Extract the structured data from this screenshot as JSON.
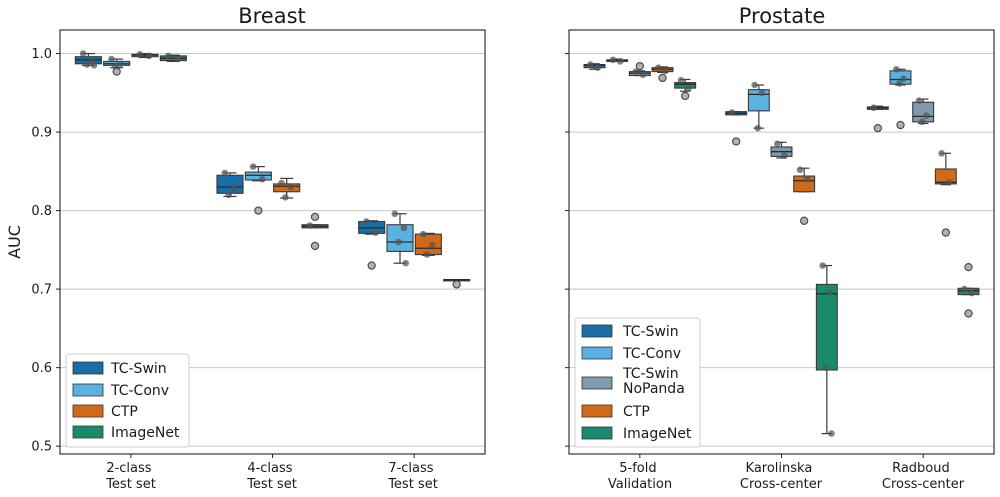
{
  "colors": {
    "TC-Swin": "#1a6ea8",
    "TC-Conv": "#5cb1e3",
    "TC-Swin NoPanda": "#7e9bb0",
    "CTP": "#d06a18",
    "ImageNet": "#1a8a6c"
  },
  "chart_data": [
    {
      "type": "box",
      "title": "Breast",
      "ylabel": "AUC",
      "ylim": [
        0.49,
        1.03
      ],
      "yticks": [
        "0.5",
        "0.6",
        "0.7",
        "0.8",
        "0.9",
        "1.0"
      ],
      "grid": true,
      "legend_position": "lower-left",
      "legend": [
        "TC-Swin",
        "TC-Conv",
        "CTP",
        "ImageNet"
      ],
      "categories": [
        "2-class\nTest set",
        "4-class\nTest set",
        "7-class\nTest set"
      ],
      "series": [
        {
          "name": "TC-Swin",
          "color_key": "TC-Swin",
          "boxes": [
            {
              "whislo": 0.985,
              "q1": 0.987,
              "med": 0.992,
              "q3": 0.996,
              "whishi": 1.0,
              "points": [
                1.0,
                0.99,
                0.986,
                0.985
              ],
              "fliers": []
            },
            {
              "whislo": 0.818,
              "q1": 0.822,
              "med": 0.83,
              "q3": 0.845,
              "whishi": 0.848,
              "points": [
                0.848,
                0.828,
                0.82
              ],
              "fliers": []
            },
            {
              "whislo": 0.77,
              "q1": 0.771,
              "med": 0.778,
              "q3": 0.786,
              "whishi": 0.787,
              "points": [
                0.786,
                0.772
              ],
              "fliers": [
                0.73
              ]
            }
          ]
        },
        {
          "name": "TC-Conv",
          "color_key": "TC-Conv",
          "boxes": [
            {
              "whislo": 0.982,
              "q1": 0.985,
              "med": 0.987,
              "q3": 0.99,
              "whishi": 0.993,
              "points": [
                0.993,
                0.987,
                0.984
              ],
              "fliers": [
                0.977
              ]
            },
            {
              "whislo": 0.838,
              "q1": 0.839,
              "med": 0.845,
              "q3": 0.849,
              "whishi": 0.856,
              "points": [
                0.856,
                0.84
              ],
              "fliers": [
                0.8
              ]
            },
            {
              "whislo": 0.733,
              "q1": 0.748,
              "med": 0.76,
              "q3": 0.782,
              "whishi": 0.796,
              "points": [
                0.796,
                0.778,
                0.76,
                0.733
              ],
              "fliers": []
            }
          ]
        },
        {
          "name": "CTP",
          "color_key": "CTP",
          "boxes": [
            {
              "whislo": 0.995,
              "q1": 0.996,
              "med": 0.998,
              "q3": 0.999,
              "whishi": 1.0,
              "points": [
                0.999,
                0.997
              ],
              "fliers": []
            },
            {
              "whislo": 0.816,
              "q1": 0.824,
              "med": 0.831,
              "q3": 0.834,
              "whishi": 0.841,
              "points": [
                0.835,
                0.83,
                0.817
              ],
              "fliers": []
            },
            {
              "whislo": 0.743,
              "q1": 0.744,
              "med": 0.752,
              "q3": 0.77,
              "whishi": 0.771,
              "points": [
                0.77,
                0.756,
                0.744
              ],
              "fliers": []
            }
          ]
        },
        {
          "name": "ImageNet",
          "color_key": "ImageNet",
          "boxes": [
            {
              "whislo": 0.99,
              "q1": 0.991,
              "med": 0.994,
              "q3": 0.997,
              "whishi": 0.998,
              "points": [
                0.997,
                0.993
              ],
              "fliers": []
            },
            {
              "whislo": 0.778,
              "q1": 0.778,
              "med": 0.78,
              "q3": 0.782,
              "whishi": 0.782,
              "points": [
                0.781
              ],
              "fliers": [
                0.792,
                0.755
              ]
            },
            {
              "whislo": 0.712,
              "q1": 0.712,
              "med": 0.712,
              "q3": 0.712,
              "whishi": 0.712,
              "points": [],
              "fliers": [
                0.706
              ]
            }
          ]
        }
      ]
    },
    {
      "type": "box",
      "title": "Prostate",
      "ylabel": "",
      "ylim": [
        0.49,
        1.03
      ],
      "yticks": [
        "0.5",
        "0.6",
        "0.7",
        "0.8",
        "0.9",
        "1.0"
      ],
      "grid": true,
      "legend_position": "lower-left",
      "legend": [
        "TC-Swin",
        "TC-Conv",
        "TC-Swin\nNoPanda",
        "CTP",
        "ImageNet"
      ],
      "categories": [
        "5-fold\nValidation",
        "Karolinska\nCross-center",
        "Radboud\nCross-center"
      ],
      "series": [
        {
          "name": "TC-Swin",
          "color_key": "TC-Swin",
          "boxes": [
            {
              "whislo": 0.98,
              "q1": 0.982,
              "med": 0.985,
              "q3": 0.986,
              "whishi": 0.987,
              "points": [
                0.986,
                0.982
              ],
              "fliers": []
            },
            {
              "whislo": 0.922,
              "q1": 0.922,
              "med": 0.924,
              "q3": 0.926,
              "whishi": 0.926,
              "points": [
                0.925
              ],
              "fliers": [
                0.888
              ]
            },
            {
              "whislo": 0.929,
              "q1": 0.929,
              "med": 0.931,
              "q3": 0.932,
              "whishi": 0.933,
              "points": [
                0.931
              ],
              "fliers": [
                0.905
              ]
            }
          ]
        },
        {
          "name": "TC-Conv",
          "color_key": "TC-Conv",
          "boxes": [
            {
              "whislo": 0.99,
              "q1": 0.99,
              "med": 0.991,
              "q3": 0.992,
              "whishi": 0.993,
              "points": [
                0.992,
                0.99
              ],
              "fliers": []
            },
            {
              "whislo": 0.905,
              "q1": 0.927,
              "med": 0.948,
              "q3": 0.954,
              "whishi": 0.96,
              "points": [
                0.96,
                0.95,
                0.905
              ],
              "fliers": []
            },
            {
              "whislo": 0.96,
              "q1": 0.961,
              "med": 0.967,
              "q3": 0.978,
              "whishi": 0.98,
              "points": [
                0.98,
                0.968,
                0.962
              ],
              "fliers": [
                0.909
              ]
            }
          ]
        },
        {
          "name": "TC-Swin NoPanda",
          "color_key": "TC-Swin NoPanda",
          "boxes": [
            {
              "whislo": 0.972,
              "q1": 0.972,
              "med": 0.975,
              "q3": 0.977,
              "whishi": 0.978,
              "points": [
                0.977,
                0.973
              ],
              "fliers": [
                0.984
              ]
            },
            {
              "whislo": 0.867,
              "q1": 0.869,
              "med": 0.875,
              "q3": 0.881,
              "whishi": 0.887,
              "points": [
                0.885,
                0.87
              ],
              "fliers": []
            },
            {
              "whislo": 0.911,
              "q1": 0.913,
              "med": 0.92,
              "q3": 0.938,
              "whishi": 0.942,
              "points": [
                0.94,
                0.921,
                0.913
              ],
              "fliers": []
            }
          ]
        },
        {
          "name": "CTP",
          "color_key": "CTP",
          "boxes": [
            {
              "whislo": 0.976,
              "q1": 0.977,
              "med": 0.98,
              "q3": 0.982,
              "whishi": 0.983,
              "points": [
                0.982,
                0.978
              ],
              "fliers": [
                0.969
              ]
            },
            {
              "whislo": 0.824,
              "q1": 0.824,
              "med": 0.838,
              "q3": 0.844,
              "whishi": 0.854,
              "points": [
                0.852,
                0.84
              ],
              "fliers": [
                0.787
              ]
            },
            {
              "whislo": 0.833,
              "q1": 0.834,
              "med": 0.836,
              "q3": 0.853,
              "whishi": 0.873,
              "points": [
                0.873,
                0.836
              ],
              "fliers": [
                0.772
              ]
            }
          ]
        },
        {
          "name": "ImageNet",
          "color_key": "ImageNet",
          "boxes": [
            {
              "whislo": 0.952,
              "q1": 0.956,
              "med": 0.961,
              "q3": 0.963,
              "whishi": 0.967,
              "points": [
                0.966,
                0.955
              ],
              "fliers": [
                0.946
              ]
            },
            {
              "whislo": 0.516,
              "q1": 0.597,
              "med": 0.694,
              "q3": 0.706,
              "whishi": 0.73,
              "points": [
                0.73,
                0.696,
                0.6,
                0.516
              ],
              "fliers": []
            },
            {
              "whislo": 0.693,
              "q1": 0.693,
              "med": 0.698,
              "q3": 0.701,
              "whishi": 0.701,
              "points": [
                0.7,
                0.695
              ],
              "fliers": [
                0.728,
                0.669
              ]
            }
          ]
        }
      ]
    }
  ]
}
